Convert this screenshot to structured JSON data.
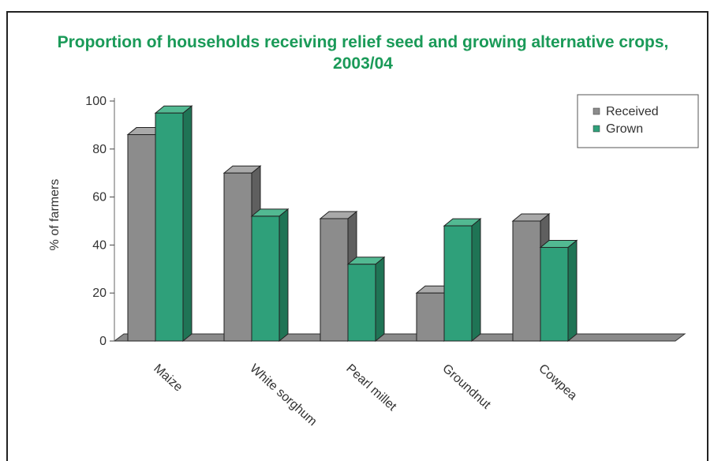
{
  "chart_data": {
    "type": "bar",
    "title": "Proportion of households receiving relief seed and growing alternative crops, 2003/04",
    "ylabel": "% of farmers",
    "xlabel": "",
    "categories": [
      "Maize",
      "White sorghum",
      "Pearl millet",
      "Groundnut",
      "Cowpea"
    ],
    "series": [
      {
        "name": "Received",
        "values": [
          86,
          70,
          51,
          20,
          50
        ],
        "color": "#8c8c8c"
      },
      {
        "name": "Grown",
        "values": [
          95,
          52,
          32,
          48,
          39
        ],
        "color": "#2fa07a"
      }
    ],
    "yticks": [
      "0",
      "20",
      "40",
      "60",
      "80",
      "100"
    ],
    "ylim": [
      0,
      100
    ],
    "legend": "top-right",
    "grid": false
  }
}
